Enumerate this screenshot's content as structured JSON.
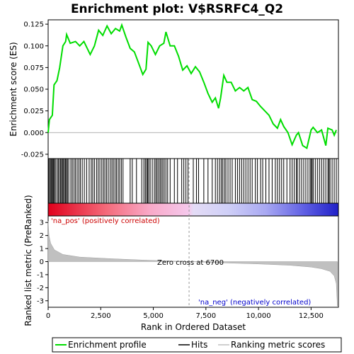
{
  "chart_data": {
    "type": "line",
    "title": "Enrichment plot: V$RSRFC4_Q2",
    "xlabel": "Rank in Ordered Dataset",
    "ylabel_top": "Enrichment score (ES)",
    "ylabel_bottom": "Ranked list metric (PreRanked)",
    "x_range": [
      0,
      13800
    ],
    "x_ticks": [
      "0",
      "2,500",
      "5,000",
      "7,500",
      "10,000",
      "12,500"
    ],
    "x_tick_values": [
      0,
      2500,
      5000,
      7500,
      10000,
      12500
    ],
    "es_ylim": [
      -0.03,
      0.13
    ],
    "es_ticks": [
      "-0.025",
      "0.000",
      "0.025",
      "0.050",
      "0.075",
      "0.100",
      "0.125"
    ],
    "es_tick_values": [
      -0.025,
      0,
      0.025,
      0.05,
      0.075,
      0.1,
      0.125
    ],
    "metric_ylim": [
      -3.5,
      3.5
    ],
    "metric_ticks": [
      "-3",
      "-2",
      "-1",
      "0",
      "1",
      "2",
      "3"
    ],
    "metric_tick_values": [
      -3,
      -2,
      -1,
      0,
      1,
      2,
      3
    ],
    "enrichment_profile": [
      [
        0,
        0.0
      ],
      [
        60,
        0.015
      ],
      [
        200,
        0.02
      ],
      [
        280,
        0.055
      ],
      [
        420,
        0.06
      ],
      [
        550,
        0.075
      ],
      [
        700,
        0.1
      ],
      [
        830,
        0.105
      ],
      [
        880,
        0.113
      ],
      [
        1050,
        0.103
      ],
      [
        1300,
        0.105
      ],
      [
        1500,
        0.1
      ],
      [
        1700,
        0.105
      ],
      [
        2000,
        0.09
      ],
      [
        2200,
        0.1
      ],
      [
        2400,
        0.118
      ],
      [
        2600,
        0.112
      ],
      [
        2800,
        0.123
      ],
      [
        3000,
        0.114
      ],
      [
        3200,
        0.12
      ],
      [
        3400,
        0.117
      ],
      [
        3500,
        0.124
      ],
      [
        3700,
        0.11
      ],
      [
        3900,
        0.097
      ],
      [
        4100,
        0.093
      ],
      [
        4300,
        0.08
      ],
      [
        4500,
        0.067
      ],
      [
        4650,
        0.073
      ],
      [
        4750,
        0.104
      ],
      [
        4900,
        0.1
      ],
      [
        5100,
        0.09
      ],
      [
        5300,
        0.1
      ],
      [
        5500,
        0.103
      ],
      [
        5600,
        0.116
      ],
      [
        5800,
        0.1
      ],
      [
        6000,
        0.1
      ],
      [
        6200,
        0.088
      ],
      [
        6400,
        0.072
      ],
      [
        6600,
        0.077
      ],
      [
        6800,
        0.068
      ],
      [
        7000,
        0.076
      ],
      [
        7200,
        0.07
      ],
      [
        7400,
        0.058
      ],
      [
        7600,
        0.045
      ],
      [
        7800,
        0.035
      ],
      [
        7950,
        0.04
      ],
      [
        8100,
        0.028
      ],
      [
        8200,
        0.04
      ],
      [
        8350,
        0.066
      ],
      [
        8500,
        0.058
      ],
      [
        8700,
        0.058
      ],
      [
        8900,
        0.048
      ],
      [
        9100,
        0.052
      ],
      [
        9300,
        0.048
      ],
      [
        9500,
        0.052
      ],
      [
        9700,
        0.038
      ],
      [
        9900,
        0.036
      ],
      [
        10100,
        0.03
      ],
      [
        10300,
        0.025
      ],
      [
        10500,
        0.02
      ],
      [
        10700,
        0.01
      ],
      [
        10900,
        0.005
      ],
      [
        11050,
        0.015
      ],
      [
        11200,
        0.007
      ],
      [
        11400,
        0.0
      ],
      [
        11600,
        -0.014
      ],
      [
        11800,
        -0.003
      ],
      [
        11900,
        0.0
      ],
      [
        12100,
        -0.015
      ],
      [
        12300,
        -0.018
      ],
      [
        12500,
        0.003
      ],
      [
        12600,
        0.006
      ],
      [
        12800,
        0.0
      ],
      [
        13000,
        0.003
      ],
      [
        13200,
        -0.015
      ],
      [
        13300,
        0.005
      ],
      [
        13500,
        0.003
      ],
      [
        13600,
        -0.003
      ],
      [
        13700,
        0.003
      ]
    ],
    "hits": [
      30,
      80,
      130,
      170,
      210,
      250,
      300,
      340,
      420,
      480,
      530,
      590,
      640,
      680,
      730,
      780,
      830,
      870,
      920,
      980,
      1080,
      1150,
      1230,
      1300,
      1380,
      1460,
      1530,
      1620,
      1720,
      1830,
      1950,
      2050,
      2120,
      2200,
      2300,
      2380,
      2460,
      2550,
      2630,
      2700,
      2780,
      2860,
      2950,
      3030,
      3100,
      3180,
      3250,
      3330,
      3400,
      3480,
      3560,
      3900,
      4000,
      4200,
      4450,
      4550,
      4620,
      4680,
      4730,
      4780,
      4850,
      4950,
      5050,
      5120,
      5180,
      5250,
      5320,
      5380,
      5450,
      5520,
      5600,
      5680,
      5800,
      6000,
      6150,
      6350,
      6450,
      6550,
      6650,
      6900,
      7050,
      7150,
      7400,
      7600,
      7800,
      7950,
      8050,
      8150,
      8230,
      8300,
      8380,
      8450,
      8550,
      8650,
      8750,
      8900,
      9000,
      9100,
      9200,
      9300,
      9400,
      9500,
      9600,
      9700,
      9850,
      9950,
      10100,
      10200,
      10350,
      10500,
      10650,
      10800,
      10900,
      11000,
      11100,
      11200,
      11350,
      11500,
      11600,
      11700,
      11800,
      11850,
      11950,
      12050,
      12150,
      12250,
      12350,
      12450,
      12500,
      12550,
      12600,
      12700,
      12800,
      12900,
      13000,
      13100,
      13200,
      13300,
      13350,
      13400,
      13500,
      13600,
      13700
    ],
    "metric_curve": [
      [
        0,
        3.1
      ],
      [
        40,
        2.0
      ],
      [
        120,
        1.4
      ],
      [
        300,
        0.9
      ],
      [
        700,
        0.55
      ],
      [
        1500,
        0.35
      ],
      [
        3000,
        0.22
      ],
      [
        4500,
        0.12
      ],
      [
        6000,
        0.04
      ],
      [
        6700,
        0.0
      ],
      [
        8000,
        -0.08
      ],
      [
        10000,
        -0.18
      ],
      [
        11500,
        -0.28
      ],
      [
        12500,
        -0.42
      ],
      [
        13000,
        -0.55
      ],
      [
        13400,
        -0.75
      ],
      [
        13600,
        -1.1
      ],
      [
        13700,
        -1.7
      ],
      [
        13750,
        -3.4
      ]
    ],
    "zero_cross_rank": 6700,
    "annotations": {
      "pos": "'na_pos' (positively correlated)",
      "neg": "'na_neg' (negatively correlated)",
      "zero": "Zero cross at 6700"
    },
    "legend": [
      "Enrichment profile",
      "Hits",
      "Ranking metric scores"
    ],
    "colors": {
      "profile": "#00dd00",
      "hits": "#000000",
      "metric": "#c0c0c0",
      "pos_text": "#cc0000",
      "neg_text": "#0000cc",
      "zero_line": "#999999"
    }
  }
}
